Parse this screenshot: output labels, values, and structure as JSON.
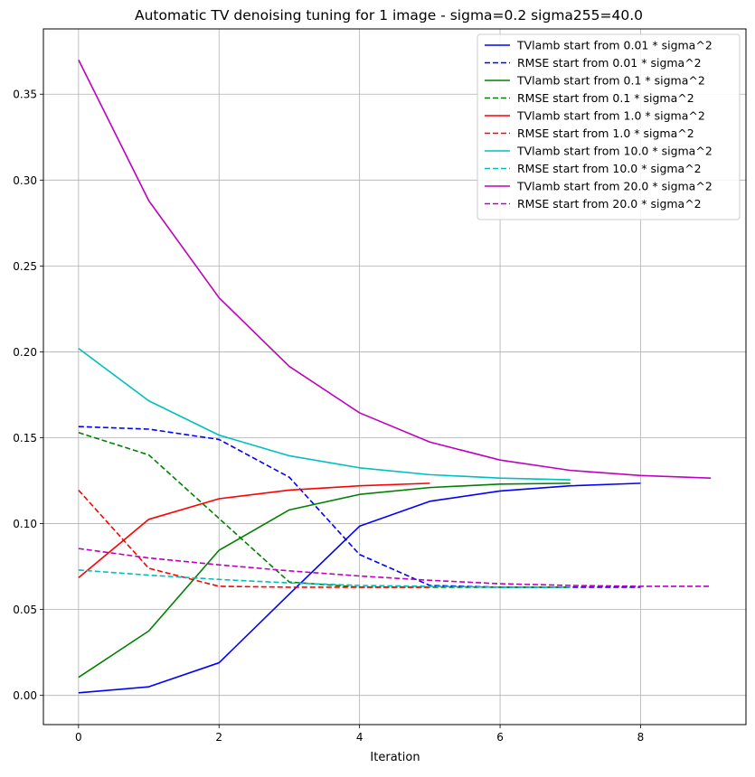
{
  "chart_data": {
    "type": "line",
    "title": "Automatic TV denoising tuning for 1 image - sigma=0.2 sigma255=40.0",
    "xlabel": "Iteration",
    "ylabel": "",
    "xlim": [
      -0.5,
      9.5
    ],
    "ylim": [
      -0.017,
      0.388
    ],
    "xticks": [
      0,
      2,
      4,
      6,
      8
    ],
    "yticks": [
      0.0,
      0.05,
      0.1,
      0.15,
      0.2,
      0.25,
      0.3,
      0.35
    ],
    "xtick_labels": [
      "0",
      "2",
      "4",
      "6",
      "8"
    ],
    "ytick_labels": [
      "0.00",
      "0.05",
      "0.10",
      "0.15",
      "0.20",
      "0.25",
      "0.30",
      "0.35"
    ],
    "grid": true,
    "legend_position": "top-right",
    "series": [
      {
        "name": "TVlamb start from 0.01 * sigma^2",
        "color": "#0000ff",
        "dash": "solid",
        "x": [
          0,
          1,
          2,
          3,
          4,
          5,
          6,
          7,
          8
        ],
        "y": [
          0.0015,
          0.005,
          0.019,
          0.059,
          0.0985,
          0.113,
          0.119,
          0.122,
          0.1235
        ]
      },
      {
        "name": "RMSE start from 0.01 * sigma^2",
        "color": "#0000ff",
        "dash": "dashed",
        "x": [
          0,
          1,
          2,
          3,
          4,
          5,
          6,
          7,
          8
        ],
        "y": [
          0.1565,
          0.155,
          0.149,
          0.127,
          0.082,
          0.064,
          0.063,
          0.063,
          0.063
        ]
      },
      {
        "name": "TVlamb start from 0.1 * sigma^2",
        "color": "#008000",
        "dash": "solid",
        "x": [
          0,
          1,
          2,
          3,
          4,
          5,
          6,
          7
        ],
        "y": [
          0.0105,
          0.0375,
          0.0845,
          0.108,
          0.117,
          0.121,
          0.123,
          0.1235
        ]
      },
      {
        "name": "RMSE start from 0.1 * sigma^2",
        "color": "#008000",
        "dash": "dashed",
        "x": [
          0,
          1,
          2,
          3,
          4,
          5,
          6,
          7
        ],
        "y": [
          0.153,
          0.14,
          0.103,
          0.066,
          0.063,
          0.063,
          0.063,
          0.063
        ]
      },
      {
        "name": "TVlamb start from 1.0 * sigma^2",
        "color": "#ff0000",
        "dash": "solid",
        "x": [
          0,
          1,
          2,
          3,
          4,
          5
        ],
        "y": [
          0.0685,
          0.1025,
          0.1145,
          0.1195,
          0.122,
          0.1235
        ]
      },
      {
        "name": "RMSE start from 1.0 * sigma^2",
        "color": "#ff0000",
        "dash": "dashed",
        "x": [
          0,
          1,
          2,
          3,
          4,
          5
        ],
        "y": [
          0.1195,
          0.074,
          0.0635,
          0.063,
          0.063,
          0.063
        ]
      },
      {
        "name": "TVlamb start from 10.0 * sigma^2",
        "color": "#00bfbf",
        "dash": "solid",
        "x": [
          0,
          1,
          2,
          3,
          4,
          5,
          6,
          7
        ],
        "y": [
          0.202,
          0.1715,
          0.1515,
          0.1395,
          0.1325,
          0.1285,
          0.1265,
          0.1255
        ]
      },
      {
        "name": "RMSE start from 10.0 * sigma^2",
        "color": "#00bfbf",
        "dash": "dashed",
        "x": [
          0,
          1,
          2,
          3,
          4,
          5,
          6,
          7
        ],
        "y": [
          0.073,
          0.07,
          0.0675,
          0.0655,
          0.064,
          0.0635,
          0.063,
          0.063
        ]
      },
      {
        "name": "TVlamb start from 20.0 * sigma^2",
        "color": "#bf00bf",
        "dash": "solid",
        "x": [
          0,
          1,
          2,
          3,
          4,
          5,
          6,
          7,
          8,
          9
        ],
        "y": [
          0.37,
          0.288,
          0.2315,
          0.1915,
          0.1645,
          0.1475,
          0.137,
          0.131,
          0.128,
          0.1265
        ]
      },
      {
        "name": "RMSE start from 20.0 * sigma^2",
        "color": "#bf00bf",
        "dash": "dashed",
        "x": [
          0,
          1,
          2,
          3,
          4,
          5,
          6,
          7,
          8,
          9
        ],
        "y": [
          0.0855,
          0.08,
          0.076,
          0.0725,
          0.0695,
          0.067,
          0.065,
          0.064,
          0.0635,
          0.0635
        ]
      }
    ]
  }
}
